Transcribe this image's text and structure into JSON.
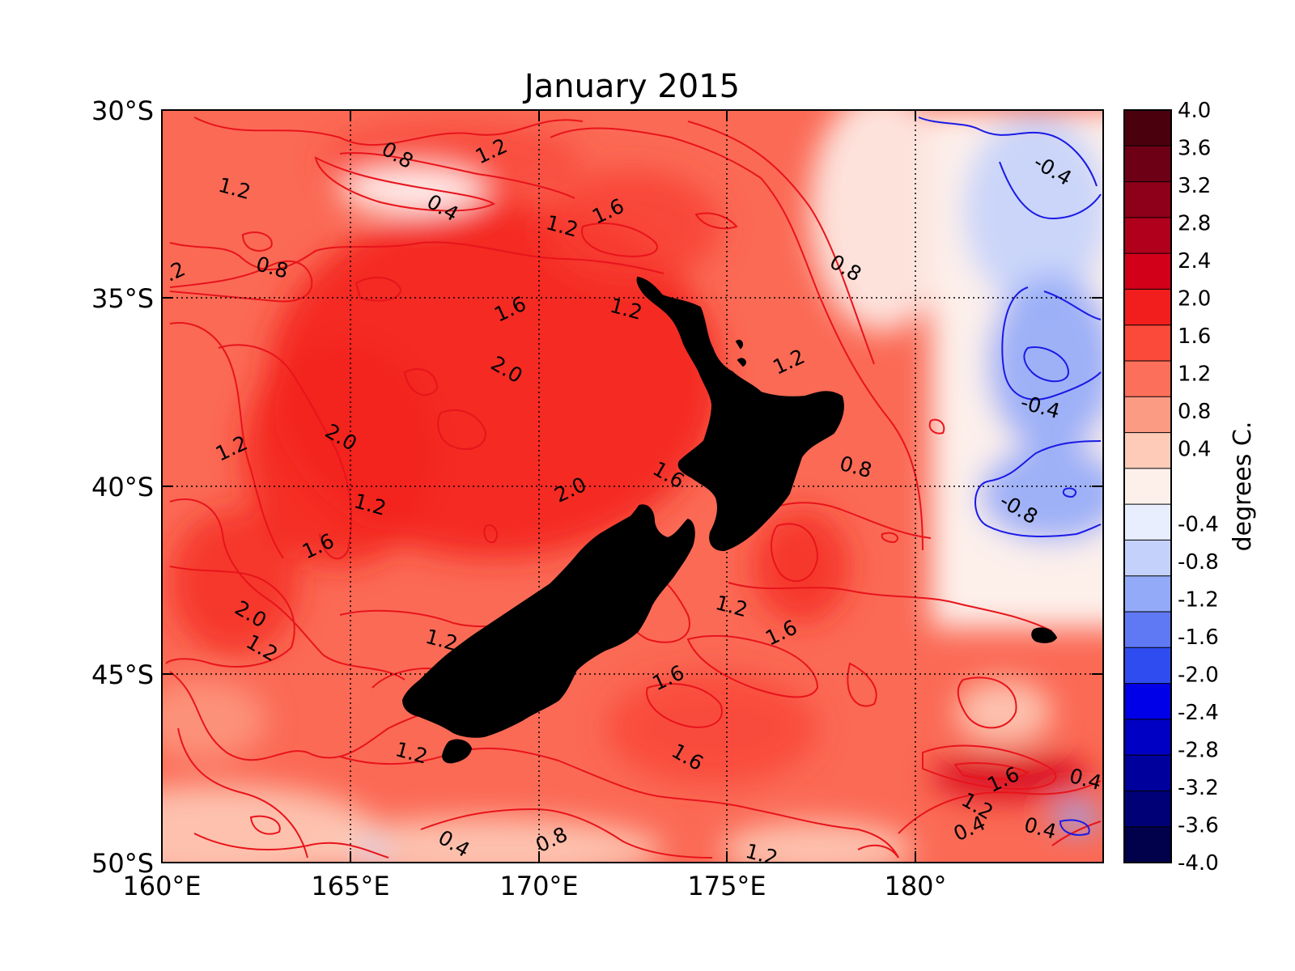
{
  "title": "January 2015",
  "colorbar": {
    "label": "degrees C.",
    "ticks": [
      "4.0",
      "3.6",
      "3.2",
      "2.8",
      "2.4",
      "2.0",
      "1.6",
      "1.2",
      "0.8",
      "0.4",
      "-0.4",
      "-0.8",
      "-1.2",
      "-1.6",
      "-2.0",
      "-2.4",
      "-2.8",
      "-3.2",
      "-3.6",
      "-4.0"
    ],
    "levels": [
      4.0,
      3.6,
      3.2,
      2.8,
      2.4,
      2.0,
      1.6,
      1.2,
      0.8,
      0.4,
      0.0,
      -0.4,
      -0.8,
      -1.2,
      -1.6,
      -2.0,
      -2.4,
      -2.8,
      -3.2,
      -3.6,
      -4.0
    ],
    "colors": [
      "#4a000d",
      "#6e0016",
      "#8e0019",
      "#b0001c",
      "#d3001a",
      "#f21d1d",
      "#fb4a3a",
      "#fc6f5a",
      "#fc9b84",
      "#fdcbb8",
      "#fdf0eb",
      "#e8eefd",
      "#c4d1fb",
      "#93aaf8",
      "#5f78f4",
      "#2f4cf0",
      "#0000e8",
      "#0000c4",
      "#00009c",
      "#000076",
      "#00004b"
    ]
  },
  "axes": {
    "x_ticks": [
      "160°E",
      "165°E",
      "170°E",
      "175°E",
      "180°"
    ],
    "y_ticks": [
      "30°S",
      "35°S",
      "40°S",
      "45°S",
      "50°S"
    ]
  },
  "chart_data": {
    "type": "heatmap",
    "title": "January 2015",
    "xlabel": "",
    "ylabel": "",
    "colorbar_label": "degrees C.",
    "xlim": [
      160,
      185
    ],
    "ylim": [
      -50,
      -30
    ],
    "value_range": [
      -4.0,
      4.0
    ],
    "grid": true,
    "contour_labels": [
      {
        "value": "0.8",
        "lon": 166.2,
        "lat": -31.3
      },
      {
        "value": "1.2",
        "lon": 168.8,
        "lat": -31.2
      },
      {
        "value": "1.2",
        "lon": 161.9,
        "lat": -32.2
      },
      {
        "value": "0.4",
        "lon": 167.4,
        "lat": -32.7
      },
      {
        "value": "1.6",
        "lon": 171.9,
        "lat": -32.8
      },
      {
        "value": "1.2",
        "lon": 170.6,
        "lat": -33.2
      },
      {
        "value": "-0.4",
        "lon": 183.6,
        "lat": -31.7
      },
      {
        "value": ".2",
        "lon": 160.4,
        "lat": -34.4
      },
      {
        "value": "0.8",
        "lon": 162.9,
        "lat": -34.3
      },
      {
        "value": "0.8",
        "lon": 178.1,
        "lat": -34.3
      },
      {
        "value": "1.6",
        "lon": 169.3,
        "lat": -35.4
      },
      {
        "value": "1.2",
        "lon": 172.3,
        "lat": -35.4
      },
      {
        "value": "2.0",
        "lon": 169.1,
        "lat": -37.0
      },
      {
        "value": "1.2",
        "lon": 176.7,
        "lat": -36.8
      },
      {
        "value": "-0.4",
        "lon": 183.3,
        "lat": -38.0
      },
      {
        "value": "2.0",
        "lon": 164.7,
        "lat": -38.8
      },
      {
        "value": "1.2",
        "lon": 161.9,
        "lat": -39.1
      },
      {
        "value": "0.8",
        "lon": 178.4,
        "lat": -39.6
      },
      {
        "value": "1.6",
        "lon": 173.4,
        "lat": -39.8
      },
      {
        "value": "2.0",
        "lon": 170.9,
        "lat": -40.2
      },
      {
        "value": "1.2",
        "lon": 165.5,
        "lat": -40.6
      },
      {
        "value": "-0.8",
        "lon": 182.7,
        "lat": -40.7
      },
      {
        "value": "1.6",
        "lon": 164.2,
        "lat": -41.7
      },
      {
        "value": "1.2",
        "lon": 175.1,
        "lat": -43.3
      },
      {
        "value": "2.0",
        "lon": 162.3,
        "lat": -43.5
      },
      {
        "value": "1.6",
        "lon": 176.5,
        "lat": -44.0
      },
      {
        "value": "1.2",
        "lon": 167.4,
        "lat": -44.2
      },
      {
        "value": "1.2",
        "lon": 162.6,
        "lat": -44.4
      },
      {
        "value": "1.6",
        "lon": 173.5,
        "lat": -45.2
      },
      {
        "value": "1.2",
        "lon": 166.6,
        "lat": -47.2
      },
      {
        "value": "1.6",
        "lon": 173.9,
        "lat": -47.3
      },
      {
        "value": "1.6",
        "lon": 182.4,
        "lat": -47.9
      },
      {
        "value": "0.4",
        "lon": 184.5,
        "lat": -47.9
      },
      {
        "value": "1.2",
        "lon": 181.6,
        "lat": -48.6
      },
      {
        "value": "0.4",
        "lon": 181.5,
        "lat": -49.2
      },
      {
        "value": "0.4",
        "lon": 183.3,
        "lat": -49.2
      },
      {
        "value": "0.4",
        "lon": 167.7,
        "lat": -49.6
      },
      {
        "value": "0.8",
        "lon": 170.4,
        "lat": -49.5
      },
      {
        "value": "1.2",
        "lon": 175.9,
        "lat": -49.9
      }
    ]
  }
}
